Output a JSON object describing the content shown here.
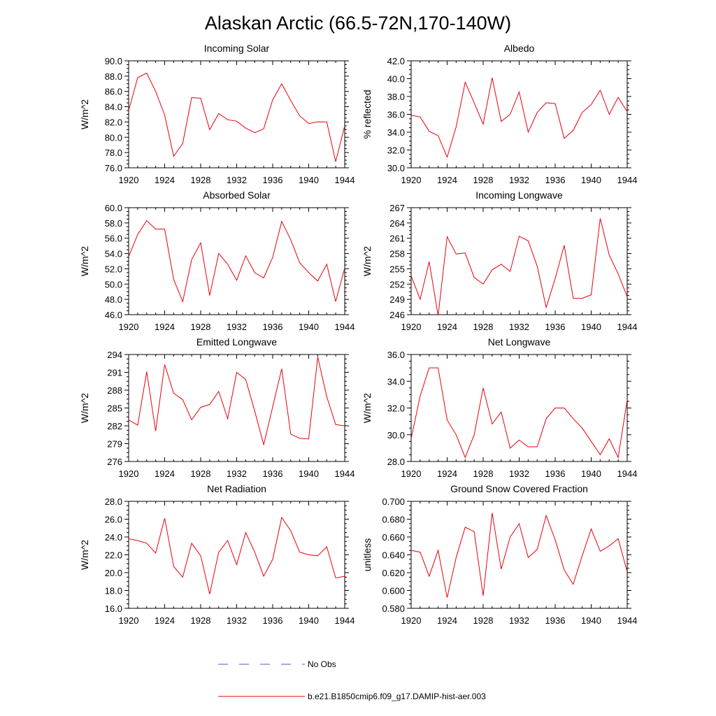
{
  "figure": {
    "title": "Alaskan Arctic (66.5-72N,170-140W)",
    "line_color": "#e8000b",
    "obs_color": "#4a55c8",
    "legend": [
      {
        "label": "No Obs",
        "style": "dashed"
      },
      {
        "label": "b.e21.B1850cmip6.f09_g17.DAMIP-hist-aer.003",
        "style": "solid"
      }
    ]
  },
  "chart_data": [
    {
      "type": "line",
      "title": "Incoming Solar",
      "ylabel": "W/m^2",
      "xlim": [
        1920,
        1944
      ],
      "ylim": [
        76.0,
        90.0
      ],
      "xticks": [
        "1920",
        "1924",
        "1928",
        "1932",
        "1936",
        "1940",
        "1944"
      ],
      "yticks": [
        "76.0",
        "78.0",
        "80.0",
        "82.0",
        "84.0",
        "86.0",
        "88.0",
        "90.0"
      ],
      "x": [
        1920,
        1921,
        1922,
        1923,
        1924,
        1925,
        1926,
        1927,
        1928,
        1929,
        1930,
        1931,
        1932,
        1933,
        1934,
        1935,
        1936,
        1937,
        1938,
        1939,
        1940,
        1941,
        1942,
        1943,
        1944
      ],
      "series": [
        {
          "values": [
            83.5,
            87.8,
            88.4,
            86.0,
            82.9,
            77.5,
            79.2,
            85.2,
            85.1,
            81.0,
            83.1,
            82.3,
            82.1,
            81.2,
            80.6,
            81.1,
            84.9,
            87.0,
            84.8,
            82.8,
            81.8,
            82.0,
            82.0,
            76.8,
            81.5
          ]
        }
      ]
    },
    {
      "type": "line",
      "title": "Albedo",
      "ylabel": "% reflected",
      "xlim": [
        1920,
        1944
      ],
      "ylim": [
        30.0,
        42.0
      ],
      "xticks": [
        "1920",
        "1924",
        "1928",
        "1932",
        "1936",
        "1940",
        "1944"
      ],
      "yticks": [
        "30.0",
        "32.0",
        "34.0",
        "36.0",
        "38.0",
        "40.0",
        "42.0"
      ],
      "x": [
        1920,
        1921,
        1922,
        1923,
        1924,
        1925,
        1926,
        1927,
        1928,
        1929,
        1930,
        1931,
        1932,
        1933,
        1934,
        1935,
        1936,
        1937,
        1938,
        1939,
        1940,
        1941,
        1942,
        1943,
        1944
      ],
      "series": [
        {
          "values": [
            35.9,
            35.7,
            34.1,
            33.6,
            31.2,
            34.6,
            39.6,
            37.3,
            34.9,
            40.1,
            35.2,
            36.0,
            38.5,
            34.0,
            36.2,
            37.3,
            37.2,
            33.3,
            34.2,
            36.2,
            37.1,
            38.7,
            36.0,
            37.9,
            36.3
          ]
        }
      ]
    },
    {
      "type": "line",
      "title": "Absorbed Solar",
      "ylabel": "W/m^2",
      "xlim": [
        1920,
        1944
      ],
      "ylim": [
        46.0,
        60.0
      ],
      "xticks": [
        "1920",
        "1924",
        "1928",
        "1932",
        "1936",
        "1940",
        "1944"
      ],
      "yticks": [
        "46.0",
        "48.0",
        "50.0",
        "52.0",
        "54.0",
        "56.0",
        "58.0",
        "60.0"
      ],
      "x": [
        1920,
        1921,
        1922,
        1923,
        1924,
        1925,
        1926,
        1927,
        1928,
        1929,
        1930,
        1931,
        1932,
        1933,
        1934,
        1935,
        1936,
        1937,
        1938,
        1939,
        1940,
        1941,
        1942,
        1943,
        1944
      ],
      "series": [
        {
          "values": [
            53.6,
            56.5,
            58.3,
            57.2,
            57.2,
            50.6,
            47.7,
            53.2,
            55.4,
            48.5,
            54.0,
            52.6,
            50.5,
            53.7,
            51.5,
            50.8,
            53.5,
            58.2,
            55.8,
            52.8,
            51.5,
            50.4,
            52.6,
            47.7,
            52.1
          ]
        }
      ]
    },
    {
      "type": "line",
      "title": "Incoming Longwave",
      "ylabel": "W/m^2",
      "xlim": [
        1920,
        1944
      ],
      "ylim": [
        246,
        267
      ],
      "xticks": [
        "1920",
        "1924",
        "1928",
        "1932",
        "1936",
        "1940",
        "1944"
      ],
      "yticks": [
        "246",
        "249",
        "252",
        "255",
        "258",
        "261",
        "264",
        "267"
      ],
      "x": [
        1920,
        1921,
        1922,
        1923,
        1924,
        1925,
        1926,
        1927,
        1928,
        1929,
        1930,
        1931,
        1932,
        1933,
        1934,
        1935,
        1936,
        1937,
        1938,
        1939,
        1940,
        1941,
        1942,
        1943,
        1944
      ],
      "series": [
        {
          "values": [
            253.6,
            249.0,
            256.4,
            245.8,
            261.3,
            257.9,
            258.1,
            253.3,
            252.0,
            254.8,
            255.9,
            254.5,
            261.4,
            260.5,
            255.5,
            247.4,
            253.1,
            259.6,
            249.2,
            249.2,
            249.9,
            264.9,
            257.7,
            254.0,
            249.5
          ]
        }
      ]
    },
    {
      "type": "line",
      "title": "Emitted Longwave",
      "ylabel": "W/m^2",
      "xlim": [
        1920,
        1944
      ],
      "ylim": [
        276,
        294
      ],
      "xticks": [
        "1920",
        "1924",
        "1928",
        "1932",
        "1936",
        "1940",
        "1944"
      ],
      "yticks": [
        "276",
        "279",
        "282",
        "285",
        "288",
        "291",
        "294"
      ],
      "x": [
        1920,
        1921,
        1922,
        1923,
        1924,
        1925,
        1926,
        1927,
        1928,
        1929,
        1930,
        1931,
        1932,
        1933,
        1934,
        1935,
        1936,
        1937,
        1938,
        1939,
        1940,
        1941,
        1942,
        1943,
        1944
      ],
      "series": [
        {
          "values": [
            283.0,
            282.1,
            291.1,
            281.1,
            292.3,
            287.5,
            286.4,
            283.0,
            285.1,
            285.6,
            287.8,
            283.2,
            291.0,
            289.8,
            284.5,
            278.8,
            285.2,
            291.6,
            280.6,
            279.9,
            279.8,
            293.6,
            286.9,
            282.2,
            282.0
          ]
        }
      ]
    },
    {
      "type": "line",
      "title": "Net Longwave",
      "ylabel": "W/m^2",
      "xlim": [
        1920,
        1944
      ],
      "ylim": [
        28.0,
        36.0
      ],
      "xticks": [
        "1920",
        "1924",
        "1928",
        "1932",
        "1936",
        "1940",
        "1944"
      ],
      "yticks": [
        "28.0",
        "30.0",
        "32.0",
        "34.0",
        "36.0"
      ],
      "x": [
        1920,
        1921,
        1922,
        1923,
        1924,
        1925,
        1926,
        1927,
        1928,
        1929,
        1930,
        1931,
        1932,
        1933,
        1934,
        1935,
        1936,
        1937,
        1938,
        1939,
        1940,
        1941,
        1942,
        1943,
        1944
      ],
      "series": [
        {
          "values": [
            29.7,
            32.9,
            35.0,
            35.0,
            31.1,
            30.0,
            28.3,
            30.0,
            33.5,
            30.8,
            31.7,
            29.0,
            29.6,
            29.1,
            29.1,
            31.2,
            32.0,
            32.0,
            31.2,
            30.5,
            29.5,
            28.5,
            29.7,
            28.3,
            32.6
          ]
        }
      ]
    },
    {
      "type": "line",
      "title": "Net Radiation",
      "ylabel": "W/m^2",
      "xlim": [
        1920,
        1944
      ],
      "ylim": [
        16.0,
        28.0
      ],
      "xticks": [
        "1920",
        "1924",
        "1928",
        "1932",
        "1936",
        "1940",
        "1944"
      ],
      "yticks": [
        "16.0",
        "18.0",
        "20.0",
        "22.0",
        "24.0",
        "26.0",
        "28.0"
      ],
      "x": [
        1920,
        1921,
        1922,
        1923,
        1924,
        1925,
        1926,
        1927,
        1928,
        1929,
        1930,
        1931,
        1932,
        1933,
        1934,
        1935,
        1936,
        1937,
        1938,
        1939,
        1940,
        1941,
        1942,
        1943,
        1944
      ],
      "series": [
        {
          "values": [
            23.8,
            23.6,
            23.3,
            22.2,
            26.1,
            20.7,
            19.5,
            23.3,
            21.9,
            17.6,
            22.3,
            23.6,
            20.9,
            24.5,
            22.3,
            19.6,
            21.5,
            26.2,
            24.7,
            22.3,
            22.0,
            21.9,
            22.9,
            19.4,
            19.6
          ]
        }
      ]
    },
    {
      "type": "line",
      "title": "Ground Snow Covered Fraction",
      "ylabel": "unitless",
      "xlim": [
        1920,
        1944
      ],
      "ylim": [
        0.58,
        0.7
      ],
      "xticks": [
        "1920",
        "1924",
        "1928",
        "1932",
        "1936",
        "1940",
        "1944"
      ],
      "yticks": [
        "0.580",
        "0.600",
        "0.620",
        "0.640",
        "0.660",
        "0.680",
        "0.700"
      ],
      "x": [
        1920,
        1921,
        1922,
        1923,
        1924,
        1925,
        1926,
        1927,
        1928,
        1929,
        1930,
        1931,
        1932,
        1933,
        1934,
        1935,
        1936,
        1937,
        1938,
        1939,
        1940,
        1941,
        1942,
        1943,
        1944
      ],
      "series": [
        {
          "values": [
            0.645,
            0.643,
            0.616,
            0.645,
            0.592,
            0.637,
            0.671,
            0.666,
            0.594,
            0.687,
            0.624,
            0.66,
            0.675,
            0.637,
            0.646,
            0.684,
            0.657,
            0.623,
            0.607,
            0.639,
            0.669,
            0.644,
            0.65,
            0.658,
            0.621
          ]
        }
      ]
    }
  ]
}
